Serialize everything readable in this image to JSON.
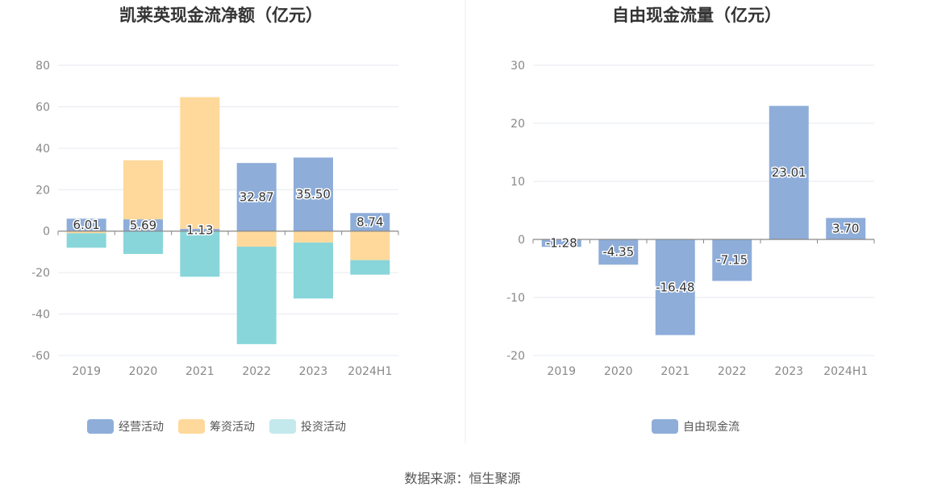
{
  "colors": {
    "operating": "#8eadd9",
    "financing": "#fed99b",
    "investing": "#88d6da",
    "investing_legend": "#c3e9ec",
    "free_cash_flow": "#8eadd9",
    "grid": "#e6e9f0",
    "axis": "#888888"
  },
  "chart_data": [
    {
      "type": "bar",
      "stacked": true,
      "title": "凯莱英现金流净额（亿元）",
      "categories": [
        "2019",
        "2020",
        "2021",
        "2022",
        "2023",
        "2024H1"
      ],
      "ylim": [
        -60,
        80
      ],
      "yticks": [
        80,
        60,
        40,
        20,
        0,
        -20,
        -40,
        -60
      ],
      "grid": true,
      "legend_position": "bottom",
      "series": [
        {
          "name": "经营活动",
          "key": "operating",
          "values": [
            6.01,
            5.69,
            1.13,
            32.87,
            35.5,
            8.74
          ]
        },
        {
          "name": "筹资活动",
          "key": "financing",
          "values": [
            -1.0,
            28.5,
            63.5,
            -7.5,
            -5.5,
            -14.0
          ]
        },
        {
          "name": "投资活动",
          "key": "investing",
          "values": [
            -7.0,
            -11.0,
            -22.0,
            -47.0,
            -27.0,
            -7.0
          ]
        }
      ],
      "data_labels": [
        "6.01",
        "5.69",
        "1.13",
        "32.87",
        "35.50",
        "8.74"
      ]
    },
    {
      "type": "bar",
      "title": "自由现金流量（亿元）",
      "categories": [
        "2019",
        "2020",
        "2021",
        "2022",
        "2023",
        "2024H1"
      ],
      "ylim": [
        -20,
        30
      ],
      "yticks": [
        30,
        20,
        10,
        0,
        -10,
        -20
      ],
      "grid": true,
      "legend_position": "bottom",
      "series": [
        {
          "name": "自由现金流",
          "key": "free_cash_flow",
          "values": [
            -1.28,
            -4.35,
            -16.48,
            -7.15,
            23.01,
            3.7
          ]
        }
      ],
      "data_labels": [
        "-1.28",
        "-4.35",
        "-16.48",
        "-7.15",
        "23.01",
        "3.70"
      ]
    }
  ],
  "footer": {
    "source": "数据来源：恒生聚源"
  }
}
